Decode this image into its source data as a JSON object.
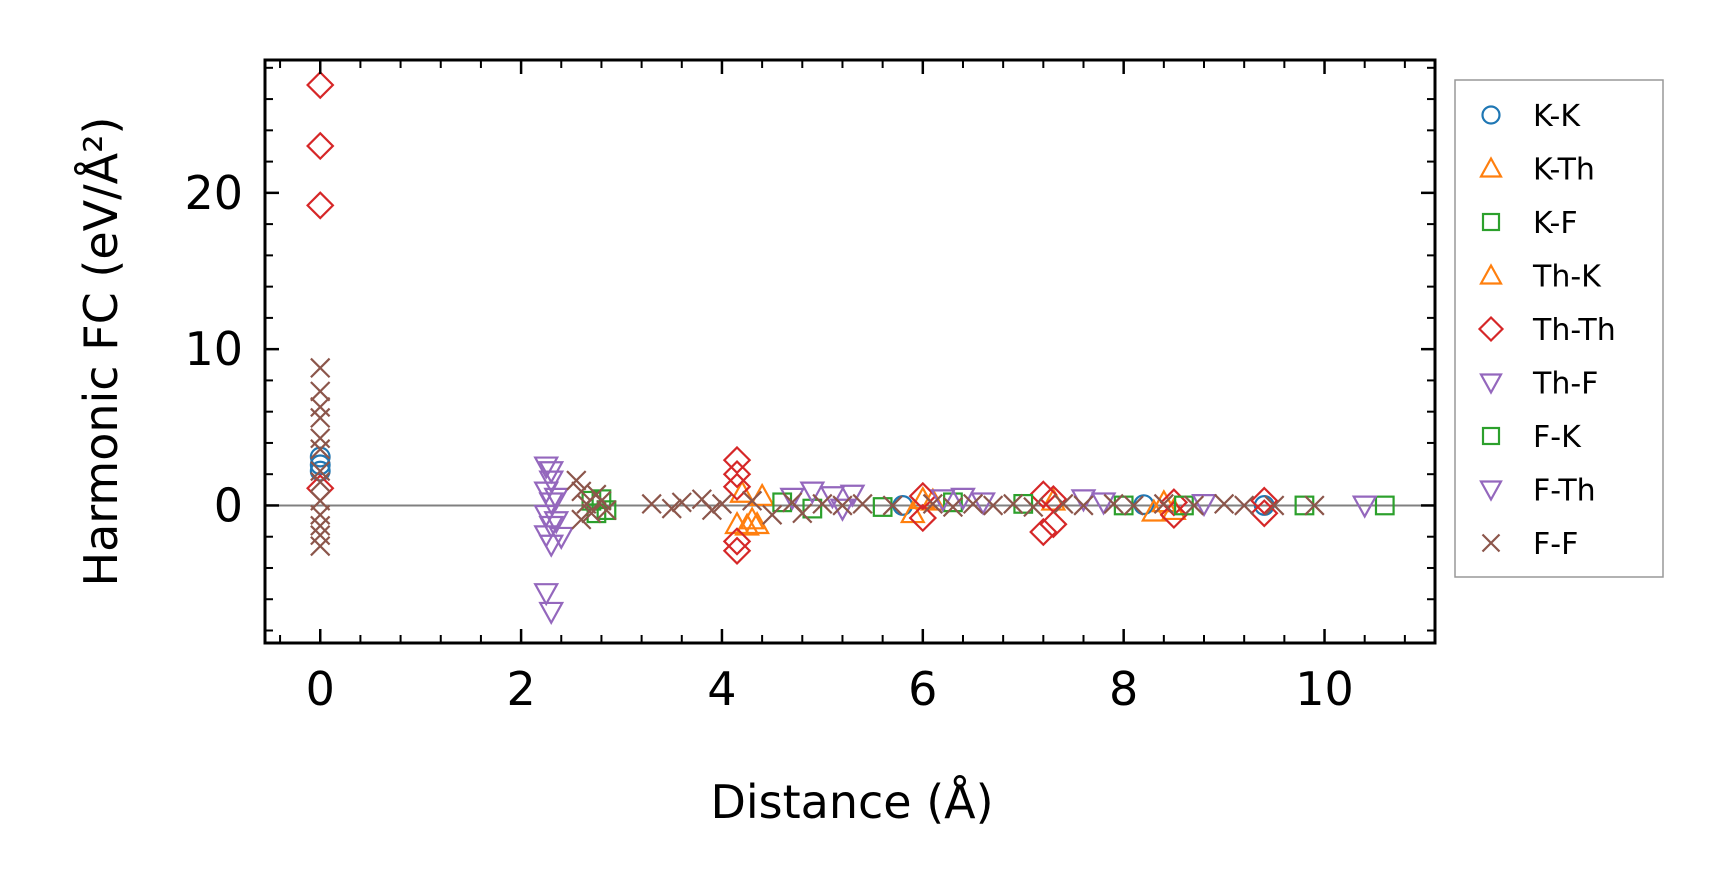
{
  "chart_data": {
    "type": "scatter",
    "xlabel": "Distance (Å)",
    "ylabel": "Harmonic FC (eV/Å²)",
    "xlim": [
      -0.55,
      11.1
    ],
    "ylim": [
      -8.8,
      28.5
    ],
    "xticks": [
      0,
      2,
      4,
      6,
      8,
      10
    ],
    "xtick_labels": [
      "0",
      "2",
      "4",
      "6",
      "8",
      "10"
    ],
    "yticks": [
      0,
      10,
      20
    ],
    "ytick_labels": [
      "0",
      "10",
      "20"
    ],
    "zero_line": true,
    "grid": false,
    "legend_position": "outside-right",
    "series": [
      {
        "name": "K-K",
        "marker": "circle",
        "color": "#1f77b4",
        "points": [
          [
            0,
            2.6
          ],
          [
            0,
            3.1
          ],
          [
            0,
            2.2
          ],
          [
            5.8,
            0.0
          ],
          [
            8.2,
            0.05
          ],
          [
            9.4,
            0.0
          ]
        ]
      },
      {
        "name": "K-Th",
        "marker": "triangle-up",
        "color": "#ff7f0e",
        "points": [
          [
            4.15,
            -1.2
          ],
          [
            4.25,
            -1.3
          ],
          [
            4.35,
            -1.2
          ],
          [
            4.2,
            0.8
          ],
          [
            5.9,
            -0.5
          ],
          [
            6.1,
            0.3
          ],
          [
            8.3,
            -0.4
          ],
          [
            8.4,
            0.2
          ]
        ]
      },
      {
        "name": "K-F",
        "marker": "square",
        "color": "#2ca02c",
        "points": [
          [
            2.85,
            -0.3
          ],
          [
            2.8,
            0.4
          ],
          [
            4.9,
            -0.2
          ],
          [
            6.3,
            0.2
          ],
          [
            8.0,
            0.0
          ],
          [
            9.8,
            0.0
          ],
          [
            10.6,
            0.0
          ]
        ]
      },
      {
        "name": "Th-K",
        "marker": "triangle-up",
        "color": "#ff7f0e",
        "points": [
          [
            4.3,
            -0.9
          ],
          [
            4.4,
            0.6
          ],
          [
            6.0,
            0.4
          ],
          [
            7.3,
            0.3
          ],
          [
            8.5,
            -0.3
          ]
        ]
      },
      {
        "name": "Th-Th",
        "marker": "diamond",
        "color": "#d62728",
        "points": [
          [
            0,
            26.9
          ],
          [
            0,
            23.0
          ],
          [
            0,
            19.2
          ],
          [
            0,
            1.1
          ],
          [
            4.15,
            2.9
          ],
          [
            4.15,
            2.0
          ],
          [
            4.15,
            1.2
          ],
          [
            4.15,
            -2.3
          ],
          [
            4.15,
            -2.9
          ],
          [
            6.0,
            0.6
          ],
          [
            6.0,
            -0.8
          ],
          [
            7.2,
            0.7
          ],
          [
            7.2,
            -1.7
          ],
          [
            7.3,
            -1.2
          ],
          [
            7.3,
            0.4
          ],
          [
            8.5,
            -0.6
          ],
          [
            8.5,
            0.2
          ],
          [
            9.4,
            -0.5
          ],
          [
            9.4,
            0.3
          ]
        ]
      },
      {
        "name": "Th-F",
        "marker": "triangle-down",
        "color": "#9467bd",
        "points": [
          [
            2.25,
            2.5
          ],
          [
            2.3,
            1.6
          ],
          [
            2.25,
            0.9
          ],
          [
            2.3,
            0.2
          ],
          [
            2.25,
            -0.6
          ],
          [
            2.3,
            -1.3
          ],
          [
            2.25,
            -1.9
          ],
          [
            2.3,
            -2.5
          ],
          [
            2.25,
            -5.6
          ],
          [
            2.3,
            -6.8
          ],
          [
            4.9,
            0.9
          ],
          [
            5.3,
            0.7
          ],
          [
            6.2,
            0.4
          ],
          [
            7.8,
            0.2
          ],
          [
            10.4,
            0.0
          ]
        ]
      },
      {
        "name": "F-K",
        "marker": "square",
        "color": "#2ca02c",
        "points": [
          [
            2.75,
            -0.5
          ],
          [
            2.7,
            0.3
          ],
          [
            4.6,
            0.2
          ],
          [
            5.6,
            -0.1
          ],
          [
            7.0,
            0.1
          ],
          [
            8.6,
            0.0
          ]
        ]
      },
      {
        "name": "F-Th",
        "marker": "triangle-down",
        "color": "#9467bd",
        "points": [
          [
            2.3,
            2.2
          ],
          [
            2.35,
            0.5
          ],
          [
            2.35,
            -1.0
          ],
          [
            2.4,
            -2.0
          ],
          [
            4.7,
            0.5
          ],
          [
            5.1,
            0.6
          ],
          [
            5.2,
            -0.2
          ],
          [
            6.4,
            0.5
          ],
          [
            6.6,
            0.2
          ],
          [
            7.6,
            0.4
          ],
          [
            8.8,
            0.1
          ]
        ]
      },
      {
        "name": "F-F",
        "marker": "x",
        "color": "#8c564b",
        "points": [
          [
            0,
            8.8
          ],
          [
            0,
            7.3
          ],
          [
            0,
            6.3
          ],
          [
            0,
            5.6
          ],
          [
            0,
            4.3
          ],
          [
            0,
            3.6
          ],
          [
            0,
            2.2
          ],
          [
            0,
            1.5
          ],
          [
            0,
            0.3
          ],
          [
            0,
            -0.6
          ],
          [
            0,
            -1.3
          ],
          [
            0,
            -1.9
          ],
          [
            0,
            -2.6
          ],
          [
            2.55,
            1.6
          ],
          [
            2.6,
            0.9
          ],
          [
            2.65,
            0.1
          ],
          [
            2.7,
            -0.5
          ],
          [
            2.6,
            -0.9
          ],
          [
            2.75,
            0.7
          ],
          [
            2.8,
            0.3
          ],
          [
            2.85,
            -0.3
          ],
          [
            3.3,
            0.1
          ],
          [
            3.5,
            -0.2
          ],
          [
            3.6,
            0.2
          ],
          [
            3.8,
            0.4
          ],
          [
            3.9,
            -0.3
          ],
          [
            4.0,
            0.1
          ],
          [
            4.3,
            0.3
          ],
          [
            4.5,
            -0.6
          ],
          [
            4.7,
            0.2
          ],
          [
            4.8,
            -0.5
          ],
          [
            5.0,
            0.1
          ],
          [
            5.2,
            0.0
          ],
          [
            5.4,
            0.1
          ],
          [
            5.7,
            0.0
          ],
          [
            6.1,
            0.1
          ],
          [
            6.3,
            -0.1
          ],
          [
            6.5,
            0.1
          ],
          [
            6.7,
            0.0
          ],
          [
            6.9,
            0.1
          ],
          [
            7.1,
            -0.1
          ],
          [
            7.4,
            0.1
          ],
          [
            7.6,
            0.0
          ],
          [
            7.9,
            0.1
          ],
          [
            8.1,
            0.0
          ],
          [
            8.4,
            0.1
          ],
          [
            8.7,
            0.0
          ],
          [
            9.0,
            0.1
          ],
          [
            9.2,
            0.0
          ],
          [
            9.5,
            0.0
          ],
          [
            9.9,
            0.0
          ]
        ]
      }
    ]
  }
}
